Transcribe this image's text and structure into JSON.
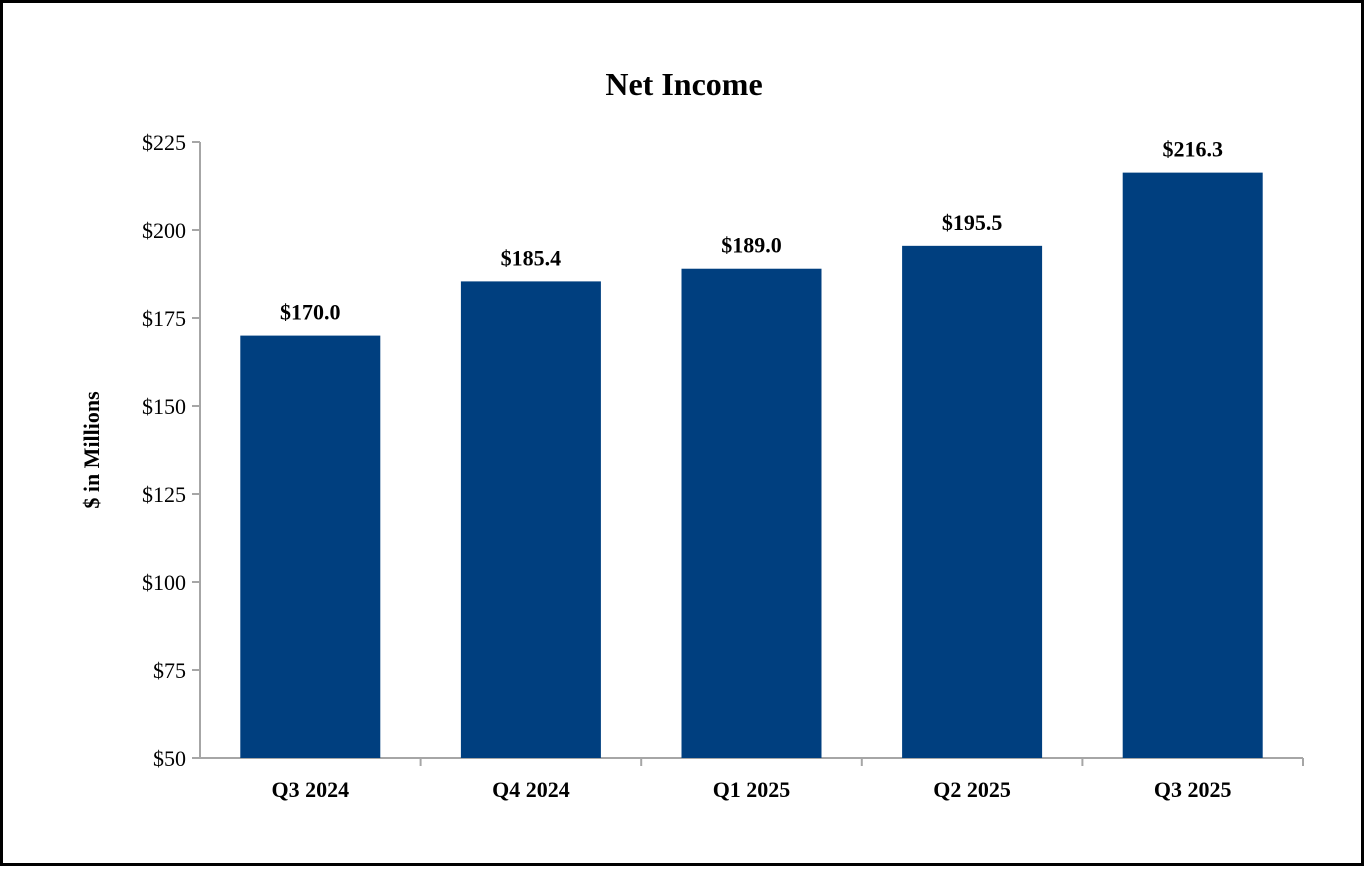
{
  "chart_data": {
    "type": "bar",
    "title": "Net Income",
    "xlabel": "",
    "ylabel": "$ in Millions",
    "categories": [
      "Q3 2024",
      "Q4 2024",
      "Q1 2025",
      "Q2 2025",
      "Q3 2025"
    ],
    "values": [
      170.0,
      185.4,
      189.0,
      195.5,
      216.3
    ],
    "data_labels": [
      "$170.0",
      "$185.4",
      "$189.0",
      "$195.5",
      "$216.3"
    ],
    "ylim": [
      50,
      225
    ],
    "yticks": [
      50,
      75,
      100,
      125,
      150,
      175,
      200,
      225
    ],
    "ytick_labels": [
      "$50",
      "$75",
      "$100",
      "$125",
      "$150",
      "$175",
      "$200",
      "$225"
    ],
    "grid": false,
    "legend": "none",
    "bar_color": "#003F7F",
    "axis_color": "#A6A6A6"
  }
}
